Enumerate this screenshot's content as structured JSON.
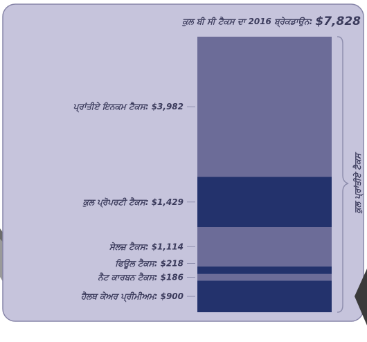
{
  "chart_data": {
    "type": "stacked-column",
    "title": "ਕੁਲ ਬੀ ਸੀ ਟੈਕਸ ਦਾ 2016 ਬ੍ਰੇਕਡਾਉਨ:",
    "total_label": "$7,828",
    "brace_label": "ਕੁਲ ਪ੍ਰਾਂਤੀਏ ਟੈਕਸ",
    "series": [
      {
        "name": "ਪ੍ਰਾਂਤੀਏ ਇਨਕਮ ਟੈਕਸ:",
        "color": "#6c6c98",
        "values": [
          3982
        ],
        "value_labels": [
          "$3,982"
        ]
      },
      {
        "name": "ਕੁਲ ਪ੍ਰੋਪਰਟੀ ਟੈਕਸ:",
        "color": "#23326c",
        "values": [
          1429
        ],
        "value_labels": [
          "$1,429"
        ]
      },
      {
        "name": "ਸੇਲਜ਼ ਟੈਕਸ:",
        "color": "#6c6c98",
        "values": [
          1114
        ],
        "value_labels": [
          "$1,114"
        ]
      },
      {
        "name": "ਫਿਊਲ ਟੈਕਸ:",
        "color": "#23326c",
        "values": [
          218
        ],
        "value_labels": [
          "$218"
        ]
      },
      {
        "name": "ਨੈਟ ਕਾਰਬਨ ਟੈਕਸ:",
        "color": "#6c6c98",
        "values": [
          186
        ],
        "value_labels": [
          "$186"
        ]
      },
      {
        "name": "ਹੈਲਥ ਕੇਅਰ ਪ੍ਰੀਮੀਅਮ:",
        "color": "#23326c",
        "values": [
          900
        ],
        "value_labels": [
          "$900"
        ]
      }
    ]
  }
}
